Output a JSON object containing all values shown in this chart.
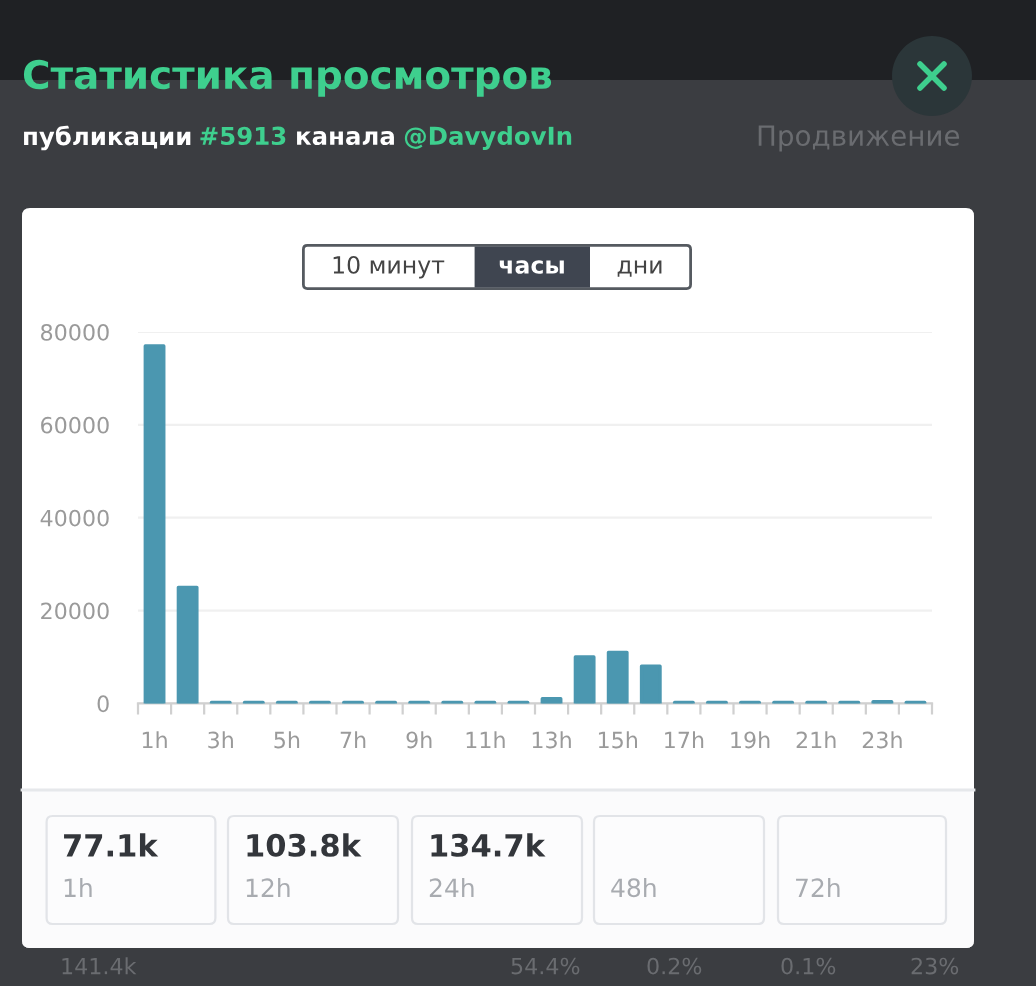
{
  "chart_data": {
    "type": "bar",
    "title": "Статистика просмотров",
    "subtitle": "публикации #5913 канала @DavydovIn",
    "categories": [
      "1h",
      null,
      "3h",
      null,
      "5h",
      null,
      "7h",
      null,
      "9h",
      null,
      "11h",
      null,
      "13h",
      null,
      "15h",
      null,
      "17h",
      null,
      "19h",
      null,
      "21h",
      null,
      "23h",
      null
    ],
    "values": [
      77000,
      25000,
      200,
      200,
      200,
      200,
      200,
      200,
      200,
      200,
      200,
      200,
      1000,
      10000,
      11000,
      8000,
      200,
      200,
      200,
      200,
      200,
      200,
      400,
      200
    ],
    "color": "#4b97b0",
    "ylim": [
      0,
      80000
    ],
    "yticks": [
      0,
      20000,
      40000,
      60000,
      80000
    ],
    "grid": "y",
    "annotations": [
      "10 минут",
      "часы",
      "дни",
      "77.1k",
      "1h",
      "103.8k",
      "12h",
      "134.7k",
      "24h",
      "48h",
      "72h",
      "Продвижение",
      "141.4k",
      "54.4%",
      "0.2%",
      "0.1%",
      "23%"
    ]
  }
}
